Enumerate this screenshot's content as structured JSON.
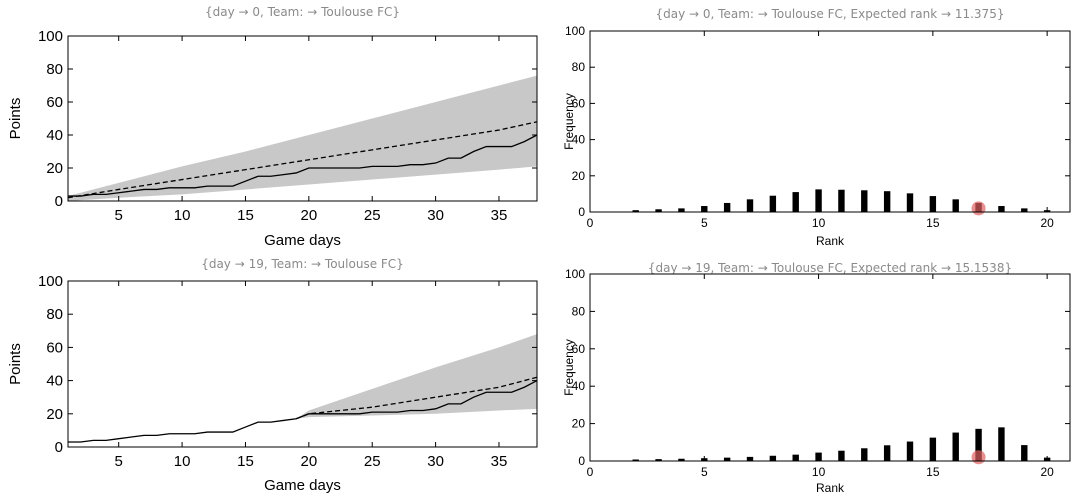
{
  "chart_data": [
    {
      "id": "p1",
      "type": "line",
      "title": "{day → 0, Team: → Toulouse FC}",
      "xlabel": "Game days",
      "ylabel": "Points",
      "xlim": [
        1,
        38
      ],
      "ylim": [
        0,
        100
      ],
      "x_ticks": [
        5,
        10,
        15,
        20,
        25,
        30,
        35
      ],
      "y_ticks": [
        0,
        20,
        40,
        60,
        80,
        100
      ],
      "band": {
        "x": [
          1,
          5,
          10,
          15,
          20,
          25,
          30,
          35,
          38
        ],
        "lower": [
          0,
          2,
          4,
          7,
          10,
          13,
          16,
          19,
          21
        ],
        "upper": [
          3,
          11,
          21,
          30,
          40,
          50,
          60,
          70,
          76
        ],
        "color": "#c8c8c8"
      },
      "series": [
        {
          "style": "dashed",
          "x": [
            1,
            5,
            10,
            15,
            20,
            25,
            30,
            35,
            38
          ],
          "y": [
            2,
            7,
            13,
            19,
            25,
            31,
            37,
            43,
            48
          ]
        },
        {
          "style": "solid",
          "x": [
            1,
            2,
            3,
            4,
            5,
            6,
            7,
            8,
            9,
            10,
            11,
            12,
            13,
            14,
            15,
            16,
            17,
            18,
            19,
            20,
            21,
            22,
            23,
            24,
            25,
            26,
            27,
            28,
            29,
            30,
            31,
            32,
            33,
            34,
            35,
            36,
            37,
            38
          ],
          "y": [
            3,
            3,
            4,
            4,
            5,
            6,
            7,
            7,
            8,
            8,
            8,
            9,
            9,
            9,
            12,
            15,
            15,
            16,
            17,
            20,
            20,
            20,
            20,
            20,
            21,
            21,
            21,
            22,
            22,
            23,
            26,
            26,
            30,
            33,
            33,
            33,
            36,
            40
          ]
        }
      ]
    },
    {
      "id": "p2",
      "type": "bar",
      "title": "{day → 0, Team: → Toulouse FC,   Expected rank → 11.375}",
      "xlabel": "Rank",
      "ylabel": "Frequency",
      "xlim": [
        0,
        21
      ],
      "ylim": [
        0,
        100
      ],
      "x_ticks": [
        0,
        5,
        10,
        15,
        20
      ],
      "y_ticks": [
        0,
        20,
        40,
        60,
        80,
        100
      ],
      "categories": [
        1,
        2,
        3,
        4,
        5,
        6,
        7,
        8,
        9,
        10,
        11,
        12,
        13,
        14,
        15,
        16,
        17,
        18,
        19,
        20
      ],
      "values": [
        0.2,
        1,
        1.5,
        2,
        3.3,
        5,
        7,
        9,
        11,
        12.5,
        12.3,
        12,
        11.5,
        10.3,
        8.8,
        7,
        5,
        3.3,
        2,
        1
      ],
      "marker": {
        "x": 17,
        "y": 2,
        "color": "#e06060"
      }
    },
    {
      "id": "p3",
      "type": "line",
      "title": "{day → 19, Team: → Toulouse FC}",
      "xlabel": "Game days",
      "ylabel": "Points",
      "xlim": [
        1,
        38
      ],
      "ylim": [
        0,
        100
      ],
      "x_ticks": [
        5,
        10,
        15,
        20,
        25,
        30,
        35
      ],
      "y_ticks": [
        0,
        20,
        40,
        60,
        80,
        100
      ],
      "band": {
        "x": [
          19,
          20,
          25,
          30,
          35,
          38
        ],
        "lower": [
          17,
          18,
          19,
          20,
          22,
          23
        ],
        "upper": [
          17,
          22,
          35,
          48,
          60,
          68
        ],
        "color": "#c8c8c8"
      },
      "series": [
        {
          "style": "dashed",
          "x": [
            19,
            20,
            25,
            30,
            35,
            38
          ],
          "y": [
            17,
            20,
            24,
            30,
            36,
            42
          ]
        },
        {
          "style": "solid",
          "x": [
            1,
            2,
            3,
            4,
            5,
            6,
            7,
            8,
            9,
            10,
            11,
            12,
            13,
            14,
            15,
            16,
            17,
            18,
            19,
            20,
            21,
            22,
            23,
            24,
            25,
            26,
            27,
            28,
            29,
            30,
            31,
            32,
            33,
            34,
            35,
            36,
            37,
            38
          ],
          "y": [
            3,
            3,
            4,
            4,
            5,
            6,
            7,
            7,
            8,
            8,
            8,
            9,
            9,
            9,
            12,
            15,
            15,
            16,
            17,
            20,
            20,
            20,
            20,
            20,
            21,
            21,
            21,
            22,
            22,
            23,
            26,
            26,
            30,
            33,
            33,
            33,
            36,
            40
          ]
        }
      ]
    },
    {
      "id": "p4",
      "type": "bar",
      "title": "{day → 19, Team: → Toulouse FC,   Expected rank → 15.1538}",
      "xlabel": "Rank",
      "ylabel": "Frequency",
      "xlim": [
        0,
        21
      ],
      "ylim": [
        0,
        100
      ],
      "x_ticks": [
        0,
        5,
        10,
        15,
        20
      ],
      "y_ticks": [
        0,
        20,
        40,
        60,
        80,
        100
      ],
      "categories": [
        1,
        2,
        3,
        4,
        5,
        6,
        7,
        8,
        9,
        10,
        11,
        12,
        13,
        14,
        15,
        16,
        17,
        18,
        19,
        20
      ],
      "values": [
        0.2,
        0.8,
        1,
        1.2,
        1.5,
        1.8,
        2.2,
        2.8,
        3.4,
        4.5,
        5.5,
        6.8,
        8.4,
        10.4,
        12.5,
        15.2,
        17.2,
        18,
        8.5,
        1.8
      ],
      "marker": {
        "x": 17,
        "y": 2,
        "color": "#e06060"
      }
    }
  ]
}
